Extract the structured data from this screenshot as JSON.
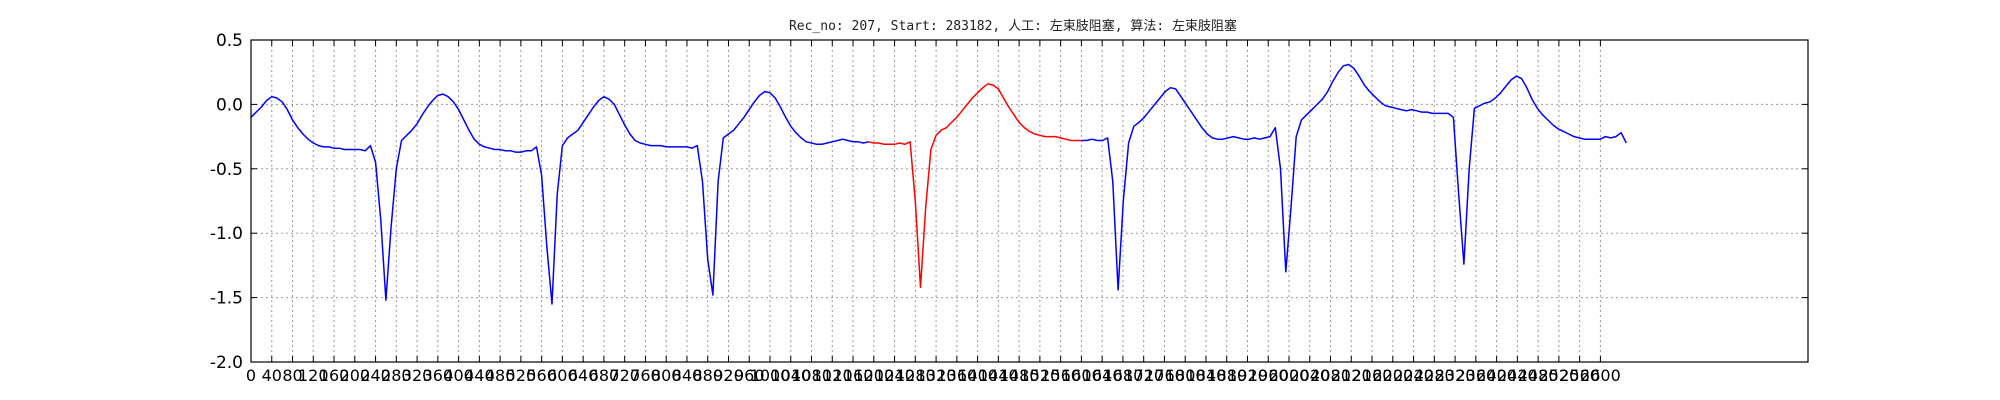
{
  "chart_data": {
    "type": "line",
    "title": "Rec_no: 207, Start: 283182, 人工: 左束肢阻塞, 算法: 左束肢阻塞",
    "xlabel": "",
    "ylabel": "",
    "xlim": [
      0,
      3000
    ],
    "ylim": [
      -2.0,
      0.5
    ],
    "yticks": [
      -2.0,
      -1.5,
      -1.0,
      -0.5,
      0.0,
      0.5
    ],
    "ytick_labels": [
      "-2.0",
      "-1.5",
      "-1.0",
      "-0.5",
      "0.0",
      "0.5"
    ],
    "xticks": [
      0,
      40,
      80,
      120,
      160,
      200,
      240,
      280,
      320,
      360,
      400,
      440,
      480,
      520,
      560,
      600,
      640,
      680,
      720,
      760,
      800,
      840,
      880,
      920,
      960,
      1000,
      1040,
      1080,
      1120,
      1160,
      1200,
      1240,
      1280,
      1320,
      1360,
      1400,
      1440,
      1480,
      1520,
      1560,
      1600,
      1640,
      1680,
      1720,
      1760,
      1800,
      1840,
      1880,
      1920,
      1960,
      2000,
      2040,
      2080,
      2120,
      2160,
      2200,
      2240,
      2280,
      2320,
      2360,
      2400,
      2440,
      2480,
      2520,
      2560,
      2600
    ],
    "grid": true,
    "legend": "none",
    "x_start": 0,
    "x_step": 10,
    "series": [
      {
        "color": "#0000ff",
        "x_range": [
          0,
          1190
        ],
        "values": [
          -0.1,
          -0.06,
          -0.02,
          0.03,
          0.06,
          0.05,
          0.02,
          -0.04,
          -0.12,
          -0.18,
          -0.23,
          -0.27,
          -0.3,
          -0.32,
          -0.33,
          -0.33,
          -0.34,
          -0.34,
          -0.35,
          -0.35,
          -0.35,
          -0.35,
          -0.36,
          -0.32,
          -0.45,
          -0.9,
          -1.52,
          -0.95,
          -0.5,
          -0.28,
          -0.24,
          -0.2,
          -0.15,
          -0.08,
          -0.02,
          0.03,
          0.07,
          0.08,
          0.06,
          0.02,
          -0.04,
          -0.12,
          -0.2,
          -0.27,
          -0.31,
          -0.33,
          -0.34,
          -0.35,
          -0.35,
          -0.36,
          -0.36,
          -0.37,
          -0.37,
          -0.36,
          -0.36,
          -0.33,
          -0.55,
          -1.1,
          -1.55,
          -0.7,
          -0.32,
          -0.26,
          -0.23,
          -0.2,
          -0.14,
          -0.08,
          -0.02,
          0.03,
          0.06,
          0.04,
          0.0,
          -0.08,
          -0.16,
          -0.23,
          -0.28,
          -0.3,
          -0.31,
          -0.32,
          -0.32,
          -0.32,
          -0.33,
          -0.33,
          -0.33,
          -0.33,
          -0.33,
          -0.34,
          -0.32,
          -0.6,
          -1.2,
          -1.48,
          -0.6,
          -0.26,
          -0.23,
          -0.2,
          -0.15,
          -0.1,
          -0.04,
          0.02,
          0.07,
          0.1,
          0.09,
          0.05,
          -0.02,
          -0.1,
          -0.17,
          -0.22,
          -0.26,
          -0.29,
          -0.3,
          -0.31,
          -0.31,
          -0.3,
          -0.29,
          -0.28,
          -0.27,
          -0.28,
          -0.29,
          -0.29,
          -0.3,
          -0.29
        ]
      },
      {
        "color": "#ff0000",
        "x_range": [
          1190,
          1600
        ],
        "values": [
          -0.29,
          -0.3,
          -0.3,
          -0.31,
          -0.31,
          -0.31,
          -0.3,
          -0.31,
          -0.29,
          -0.75,
          -1.42,
          -0.8,
          -0.35,
          -0.24,
          -0.2,
          -0.18,
          -0.14,
          -0.1,
          -0.05,
          0.0,
          0.05,
          0.09,
          0.13,
          0.16,
          0.15,
          0.12,
          0.05,
          -0.02,
          -0.08,
          -0.14,
          -0.18,
          -0.21,
          -0.23,
          -0.24,
          -0.25,
          -0.25,
          -0.25,
          -0.26,
          -0.27,
          -0.28,
          -0.28,
          -0.28
        ]
      },
      {
        "color": "#0000ff",
        "x_range": [
          1600,
          2650
        ],
        "values": [
          -0.28,
          -0.28,
          -0.27,
          -0.28,
          -0.28,
          -0.26,
          -0.6,
          -1.44,
          -0.75,
          -0.3,
          -0.17,
          -0.14,
          -0.1,
          -0.05,
          0.0,
          0.05,
          0.1,
          0.13,
          0.12,
          0.06,
          0.0,
          -0.06,
          -0.12,
          -0.18,
          -0.23,
          -0.26,
          -0.27,
          -0.27,
          -0.26,
          -0.25,
          -0.26,
          -0.27,
          -0.27,
          -0.26,
          -0.27,
          -0.26,
          -0.25,
          -0.18,
          -0.5,
          -1.3,
          -0.8,
          -0.25,
          -0.12,
          -0.08,
          -0.04,
          0.0,
          0.04,
          0.1,
          0.18,
          0.25,
          0.3,
          0.31,
          0.28,
          0.22,
          0.15,
          0.1,
          0.06,
          0.02,
          -0.01,
          -0.02,
          -0.03,
          -0.04,
          -0.05,
          -0.04,
          -0.05,
          -0.06,
          -0.06,
          -0.07,
          -0.07,
          -0.07,
          -0.07,
          -0.1,
          -0.7,
          -1.24,
          -0.5,
          -0.03,
          -0.01,
          0.01,
          0.02,
          0.05,
          0.09,
          0.14,
          0.19,
          0.22,
          0.2,
          0.13,
          0.04,
          -0.03,
          -0.08,
          -0.12,
          -0.16,
          -0.19,
          -0.21,
          -0.23,
          -0.25,
          -0.26,
          -0.27,
          -0.27,
          -0.27,
          -0.27,
          -0.25,
          -0.26,
          -0.25,
          -0.22,
          -0.3
        ]
      }
    ]
  }
}
